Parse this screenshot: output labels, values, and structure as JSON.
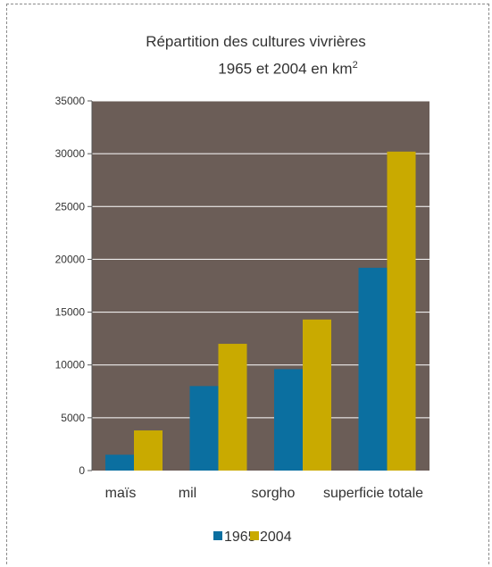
{
  "chart_data": {
    "type": "bar",
    "title_line1": "Répartition des cultures vivrières",
    "title_line2": "1965 et 2004 en km",
    "title_sup": "2",
    "categories": [
      "maïs",
      "mil",
      "sorgho",
      "superficie totale"
    ],
    "series": [
      {
        "name": "1965",
        "color": "#0b6fa0",
        "values": [
          1500,
          8000,
          9600,
          19200
        ]
      },
      {
        "name": "2004",
        "color": "#c9aa00",
        "values": [
          3800,
          12000,
          14300,
          30200
        ]
      }
    ],
    "yticks": [
      "35000",
      "30000",
      "25000",
      "20000",
      "15000",
      "10000",
      "5000",
      "0"
    ],
    "ylim": [
      0,
      35000
    ],
    "grid": true,
    "plot_background": "#6b5d57",
    "legend_position": "bottom"
  }
}
